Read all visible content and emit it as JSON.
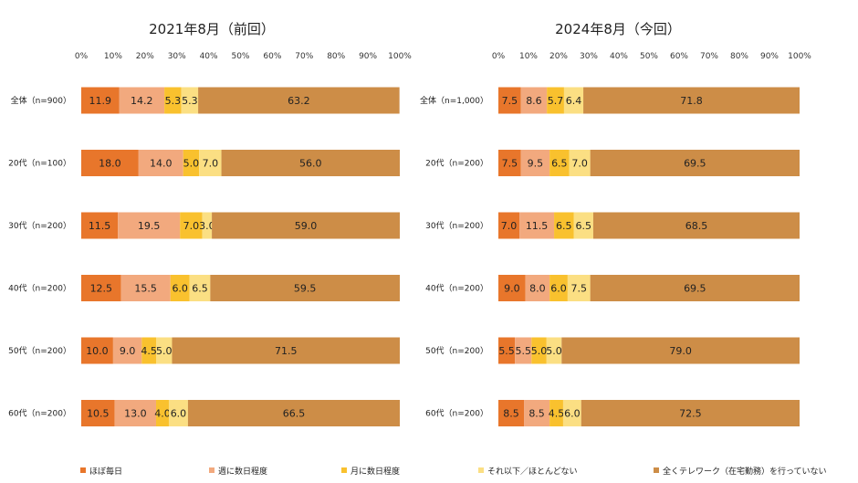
{
  "series_colors": [
    "#E8762B",
    "#F2A97E",
    "#F9C12E",
    "#FBDF83",
    "#CD8D47"
  ],
  "legend": [
    "ほぼ毎日",
    "週に数日程度",
    "月に数日程度",
    "それ以下／ほとんどない",
    "全くテレワーク（在宅勤務）を行っていない"
  ],
  "chart_data": [
    {
      "type": "bar",
      "orientation": "horizontal",
      "stacked": true,
      "title": "2021年8月（前回）",
      "x_ticks": [
        "0%",
        "10%",
        "20%",
        "30%",
        "40%",
        "50%",
        "60%",
        "70%",
        "80%",
        "90%",
        "100%"
      ],
      "xlim": [
        0,
        100
      ],
      "categories": [
        "全体（n=900）",
        "20代（n=100）",
        "30代（n=200）",
        "40代（n=200）",
        "50代（n=200）",
        "60代（n=200）"
      ],
      "series": [
        {
          "name": "ほぼ毎日",
          "values": [
            11.9,
            18.0,
            11.5,
            12.5,
            10.0,
            10.5
          ],
          "labels": [
            "11.9",
            "18.0",
            "11.5",
            "12.5",
            "10.0",
            "10.5"
          ]
        },
        {
          "name": "週に数日程度",
          "values": [
            14.2,
            14.0,
            19.5,
            15.5,
            9.0,
            13.0
          ],
          "labels": [
            "14.2",
            "14.0",
            "19.5",
            "15.5",
            "9.0",
            "13.0"
          ]
        },
        {
          "name": "月に数日程度",
          "values": [
            5.3,
            5.0,
            7.0,
            6.0,
            4.5,
            4.0
          ],
          "labels": [
            "5.3",
            "5.0",
            "7.0",
            "6.0",
            "4.5",
            "4.0"
          ]
        },
        {
          "name": "それ以下／ほとんどない",
          "values": [
            5.3,
            7.0,
            3.0,
            6.5,
            5.0,
            6.0
          ],
          "labels": [
            "5.3",
            "7.0",
            "3.0",
            "6.5",
            "5.0",
            "6.0"
          ]
        },
        {
          "name": "全くテレワーク（在宅勤務）を行っていない",
          "values": [
            63.2,
            56.0,
            59.0,
            59.5,
            71.5,
            66.5
          ],
          "labels": [
            "63.2",
            "56.0",
            "59.0",
            "59.5",
            "71.5",
            "66.5"
          ]
        }
      ]
    },
    {
      "type": "bar",
      "orientation": "horizontal",
      "stacked": true,
      "title": "2024年8月（今回）",
      "x_ticks": [
        "0%",
        "10%",
        "20%",
        "30%",
        "40%",
        "50%",
        "60%",
        "70%",
        "80%",
        "90%",
        "100%"
      ],
      "xlim": [
        0,
        100
      ],
      "categories": [
        "全体（n=1,000）",
        "20代（n=200）",
        "30代（n=200）",
        "40代（n=200）",
        "50代（n=200）",
        "60代（n=200）"
      ],
      "series": [
        {
          "name": "ほぼ毎日",
          "values": [
            7.5,
            7.5,
            7.0,
            9.0,
            5.5,
            8.5
          ],
          "labels": [
            "7.5",
            "7.5",
            "7.0",
            "9.0",
            "5.5",
            "8.5"
          ]
        },
        {
          "name": "週に数日程度",
          "values": [
            8.6,
            9.5,
            11.5,
            8.0,
            5.5,
            8.5
          ],
          "labels": [
            "8.6",
            "9.5",
            "11.5",
            "8.0",
            "5.5",
            "8.5"
          ]
        },
        {
          "name": "月に数日程度",
          "values": [
            5.7,
            6.5,
            6.5,
            6.0,
            5.0,
            4.5
          ],
          "labels": [
            "5.7",
            "6.5",
            "6.5",
            "6.0",
            "5.0",
            "4.5"
          ]
        },
        {
          "name": "それ以下／ほとんどない",
          "values": [
            6.4,
            7.0,
            6.5,
            7.5,
            5.0,
            6.0
          ],
          "labels": [
            "6.4",
            "7.0",
            "6.5",
            "7.5",
            "5.0",
            "6.0"
          ]
        },
        {
          "name": "全くテレワーク（在宅勤務）を行っていない",
          "values": [
            71.8,
            69.5,
            68.5,
            69.5,
            79.0,
            72.5
          ],
          "labels": [
            "71.8",
            "69.5",
            "68.5",
            "69.5",
            "79.0",
            "72.5"
          ]
        }
      ]
    }
  ]
}
